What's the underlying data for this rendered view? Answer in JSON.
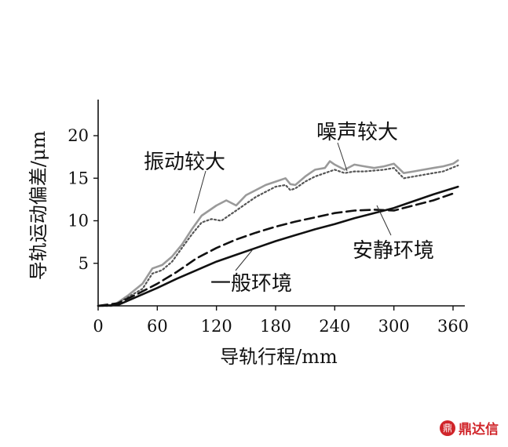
{
  "chart_data": {
    "type": "line",
    "xlabel": "导轨行程/mm",
    "ylabel": "导轨运动偏差/μm",
    "xlim": [
      0,
      370
    ],
    "ylim": [
      0,
      24
    ],
    "xticks": [
      0,
      60,
      120,
      180,
      240,
      300,
      360
    ],
    "yticks": [
      5,
      10,
      15,
      20
    ],
    "grid": false,
    "legend": "none",
    "series": [
      {
        "name": "振动较大",
        "style": "solid",
        "color": "#9a9a9a",
        "x": [
          0,
          15,
          30,
          45,
          55,
          65,
          75,
          85,
          95,
          105,
          120,
          130,
          140,
          150,
          160,
          170,
          180,
          190,
          195,
          200,
          210,
          215,
          220,
          230,
          235,
          240,
          245,
          250,
          260,
          270,
          280,
          290,
          300,
          310,
          320,
          330,
          340,
          350,
          360,
          365
        ],
        "y": [
          0,
          0,
          1.2,
          2.6,
          4.4,
          4.8,
          5.8,
          7.2,
          9.0,
          10.6,
          11.8,
          12.4,
          11.8,
          13.0,
          13.6,
          14.2,
          14.6,
          15.0,
          14.3,
          14.2,
          15.2,
          15.6,
          16.0,
          16.2,
          17.0,
          16.6,
          16.3,
          16.0,
          16.6,
          16.4,
          16.2,
          16.4,
          16.7,
          15.6,
          15.8,
          16.0,
          16.2,
          16.4,
          16.7,
          17.1
        ]
      },
      {
        "name": "噪声较大",
        "style": "dotted",
        "color": "#555555",
        "x": [
          0,
          15,
          30,
          45,
          55,
          65,
          75,
          85,
          95,
          105,
          115,
          125,
          140,
          150,
          160,
          170,
          180,
          190,
          195,
          200,
          210,
          220,
          230,
          240,
          250,
          260,
          270,
          280,
          290,
          300,
          310,
          320,
          330,
          340,
          350,
          365
        ],
        "y": [
          0,
          0,
          1.0,
          2.0,
          3.8,
          4.2,
          5.2,
          6.8,
          8.4,
          9.8,
          10.2,
          10.0,
          11.2,
          12.0,
          12.8,
          13.4,
          14.0,
          14.2,
          13.6,
          13.8,
          14.6,
          15.2,
          15.6,
          16.0,
          15.6,
          15.8,
          15.8,
          15.9,
          16.0,
          16.2,
          15.0,
          15.2,
          15.4,
          15.6,
          15.8,
          16.5
        ]
      },
      {
        "name": "一般环境",
        "style": "dashed",
        "color": "#111111",
        "x": [
          0,
          20,
          40,
          60,
          80,
          100,
          120,
          140,
          160,
          180,
          200,
          220,
          240,
          260,
          280,
          300,
          320,
          340,
          360
        ],
        "y": [
          0,
          0.3,
          1.4,
          2.6,
          4.0,
          5.6,
          6.8,
          7.8,
          8.6,
          9.3,
          9.9,
          10.4,
          10.9,
          11.2,
          11.3,
          11.2,
          11.8,
          12.4,
          13.2
        ]
      },
      {
        "name": "安静环境",
        "style": "solid",
        "color": "#111111",
        "x": [
          0,
          20,
          40,
          60,
          80,
          100,
          120,
          140,
          160,
          180,
          200,
          220,
          240,
          260,
          280,
          300,
          320,
          340,
          365
        ],
        "y": [
          0,
          0.1,
          1.1,
          2.1,
          3.2,
          4.2,
          5.2,
          6.0,
          6.8,
          7.6,
          8.3,
          9.0,
          9.6,
          10.3,
          10.9,
          11.5,
          12.3,
          13.1,
          14.0
        ]
      }
    ],
    "annotations": [
      {
        "text": "振动较大"
      },
      {
        "text": "噪声较大"
      },
      {
        "text": "安静环境"
      },
      {
        "text": "一般环境"
      }
    ]
  },
  "watermark": {
    "mark": "鼎",
    "text": "鼎达信"
  }
}
